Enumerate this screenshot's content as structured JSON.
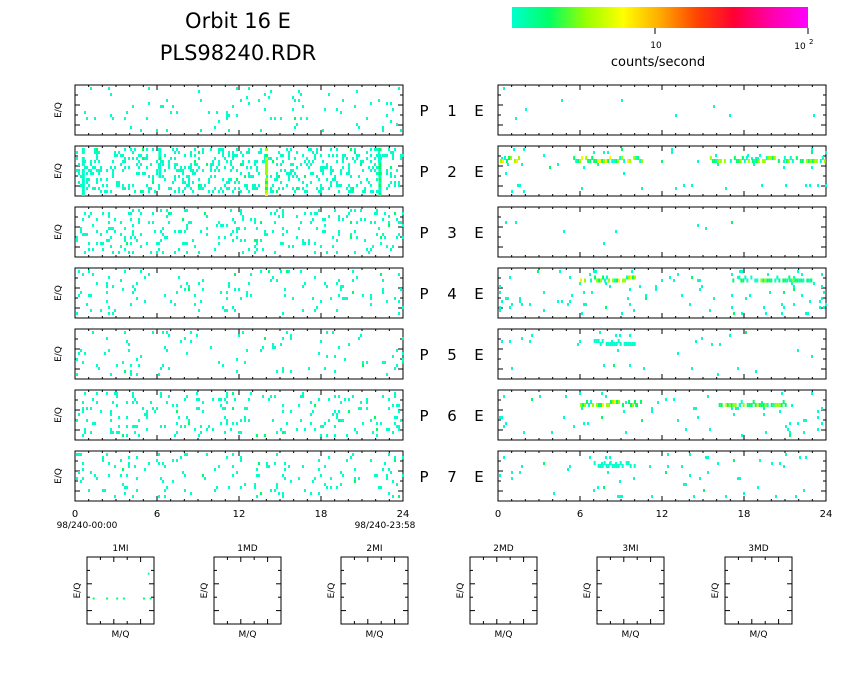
{
  "header": {
    "title_line1": "Orbit 16 E",
    "title_line2": "PLS98240.RDR"
  },
  "colorbar": {
    "label": "counts/second",
    "tick_10": "10",
    "tick_100_base": "10",
    "tick_100_exp": "2",
    "stops": [
      "#00ffcc",
      "#00ff66",
      "#99ff00",
      "#ffff00",
      "#ffaa00",
      "#ff4400",
      "#ff0033",
      "#ff00aa",
      "#ff00ff"
    ]
  },
  "time_axis": {
    "ticks": [
      "0",
      "6",
      "12",
      "18",
      "24"
    ],
    "start_label": "98/240-00:00",
    "end_label": "98/240-23:58"
  },
  "y_label": "E/Q",
  "rows": [
    {
      "p": "P",
      "num": "1",
      "e": "E"
    },
    {
      "p": "P",
      "num": "2",
      "e": "E"
    },
    {
      "p": "P",
      "num": "3",
      "e": "E"
    },
    {
      "p": "P",
      "num": "4",
      "e": "E"
    },
    {
      "p": "P",
      "num": "5",
      "e": "E"
    },
    {
      "p": "P",
      "num": "6",
      "e": "E"
    },
    {
      "p": "P",
      "num": "7",
      "e": "E"
    }
  ],
  "mass_panels": {
    "x_label": "M/Q",
    "y_label": "E/Q",
    "titles": [
      "1MI",
      "1MD",
      "2MI",
      "2MD",
      "3MI",
      "3MD"
    ]
  },
  "chart_data": {
    "type": "heatmap",
    "x_range_hours": [
      0,
      24
    ],
    "x_ticks": [
      0,
      6,
      12,
      18,
      24
    ],
    "color_scale": "log",
    "color_range_counts_per_second": [
      1,
      100
    ],
    "left_column_density": [
      0.035,
      0.2,
      0.1,
      0.05,
      0.025,
      0.09,
      0.05
    ],
    "right_column_density": [
      0.004,
      0.02,
      0.002,
      0.035,
      0.012,
      0.025,
      0.02
    ],
    "right_column_bands": [
      [],
      [
        [
          0,
          1.5,
          0.3,
          1.0
        ],
        [
          5.5,
          10.5,
          0.3,
          0.95
        ],
        [
          15.5,
          24,
          0.3,
          0.85
        ]
      ],
      [],
      [
        [
          6,
          10,
          0.25,
          0.9
        ],
        [
          17,
          23,
          0.25,
          0.75
        ]
      ],
      [
        [
          7,
          10,
          0.3,
          0.3
        ]
      ],
      [
        [
          6,
          10.5,
          0.3,
          0.95
        ],
        [
          16,
          21,
          0.3,
          0.9
        ]
      ],
      [
        [
          7,
          10,
          0.3,
          0.35
        ]
      ]
    ],
    "left_column_vertical_streaks": [
      [],
      [
        [
          0.5,
          0.3
        ],
        [
          6.1,
          0.5
        ],
        [
          13.9,
          1.0
        ],
        [
          22.2,
          0.5
        ]
      ],
      [],
      [],
      [],
      [],
      []
    ],
    "mass_panel_1MI_points": [
      [
        0.1,
        0.38
      ],
      [
        0.3,
        0.38
      ],
      [
        0.45,
        0.38
      ],
      [
        0.55,
        0.38
      ],
      [
        0.85,
        0.38
      ],
      [
        0.95,
        0.38
      ],
      [
        0.92,
        0.75
      ]
    ]
  }
}
